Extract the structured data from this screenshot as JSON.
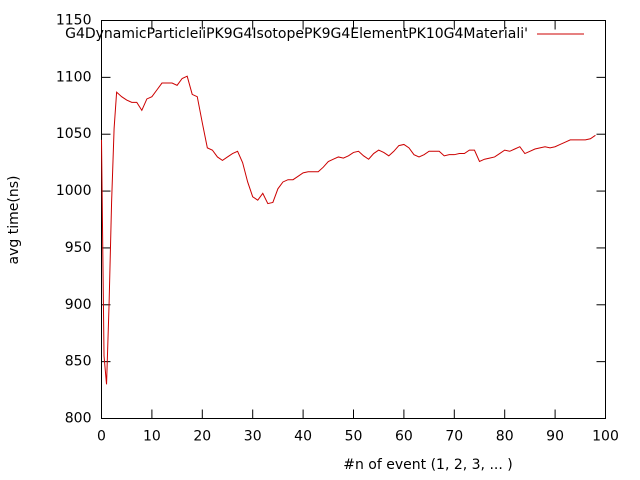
{
  "chart_data": {
    "type": "line",
    "x_label": "#n of event (1, 2, 3, ... )",
    "y_label": "avg time(ns)",
    "series": [
      {
        "name": "G4DynamicParticleiiPK9G4IsotopePK9G4ElementPK10G4Materiali'",
        "color": "#cc0000",
        "x": [
          0,
          0.5,
          1,
          1.5,
          2,
          2.5,
          3,
          4,
          5,
          6,
          7,
          8,
          9,
          10,
          11,
          12,
          13,
          14,
          15,
          16,
          17,
          18,
          19,
          20,
          21,
          22,
          23,
          24,
          25,
          26,
          27,
          28,
          29,
          30,
          31,
          32,
          33,
          34,
          35,
          36,
          37,
          38,
          39,
          40,
          41,
          42,
          43,
          44,
          45,
          46,
          47,
          48,
          49,
          50,
          51,
          52,
          53,
          54,
          55,
          56,
          57,
          58,
          59,
          60,
          61,
          62,
          63,
          64,
          65,
          66,
          67,
          68,
          69,
          70,
          71,
          72,
          73,
          74,
          75,
          76,
          77,
          78,
          79,
          80,
          81,
          82,
          83,
          84,
          85,
          86,
          87,
          88,
          89,
          90,
          91,
          92,
          93,
          94,
          95,
          96,
          97,
          98
        ],
        "values": [
          1045,
          855,
          830,
          900,
          990,
          1055,
          1087,
          1083,
          1080,
          1078,
          1078,
          1071,
          1081,
          1083,
          1089,
          1095,
          1095,
          1095,
          1093,
          1099,
          1101,
          1085,
          1083,
          1060,
          1038,
          1036,
          1030,
          1027,
          1030,
          1033,
          1035,
          1025,
          1008,
          995,
          992,
          998,
          989,
          990,
          1002,
          1008,
          1010,
          1010,
          1013,
          1016,
          1017,
          1017,
          1017,
          1021,
          1026,
          1028,
          1030,
          1029,
          1031,
          1034,
          1035,
          1031,
          1028,
          1033,
          1036,
          1034,
          1031,
          1035,
          1040,
          1041,
          1038,
          1032,
          1030,
          1032,
          1035,
          1035,
          1035,
          1031,
          1032,
          1032,
          1033,
          1033,
          1036,
          1036,
          1026,
          1028,
          1029,
          1030,
          1033,
          1036,
          1035,
          1037,
          1039,
          1033,
          1035,
          1037,
          1038,
          1039,
          1038,
          1039,
          1041,
          1043,
          1045,
          1045,
          1045,
          1045,
          1046,
          1049
        ]
      }
    ],
    "xlim": [
      0,
      100
    ],
    "xticks": [
      0,
      10,
      20,
      30,
      40,
      50,
      60,
      70,
      80,
      90,
      100
    ],
    "ylim": [
      800,
      1150
    ],
    "yticks": [
      800,
      850,
      900,
      950,
      1000,
      1050,
      1100,
      1150
    ],
    "legend": "top-right",
    "grid": false
  }
}
